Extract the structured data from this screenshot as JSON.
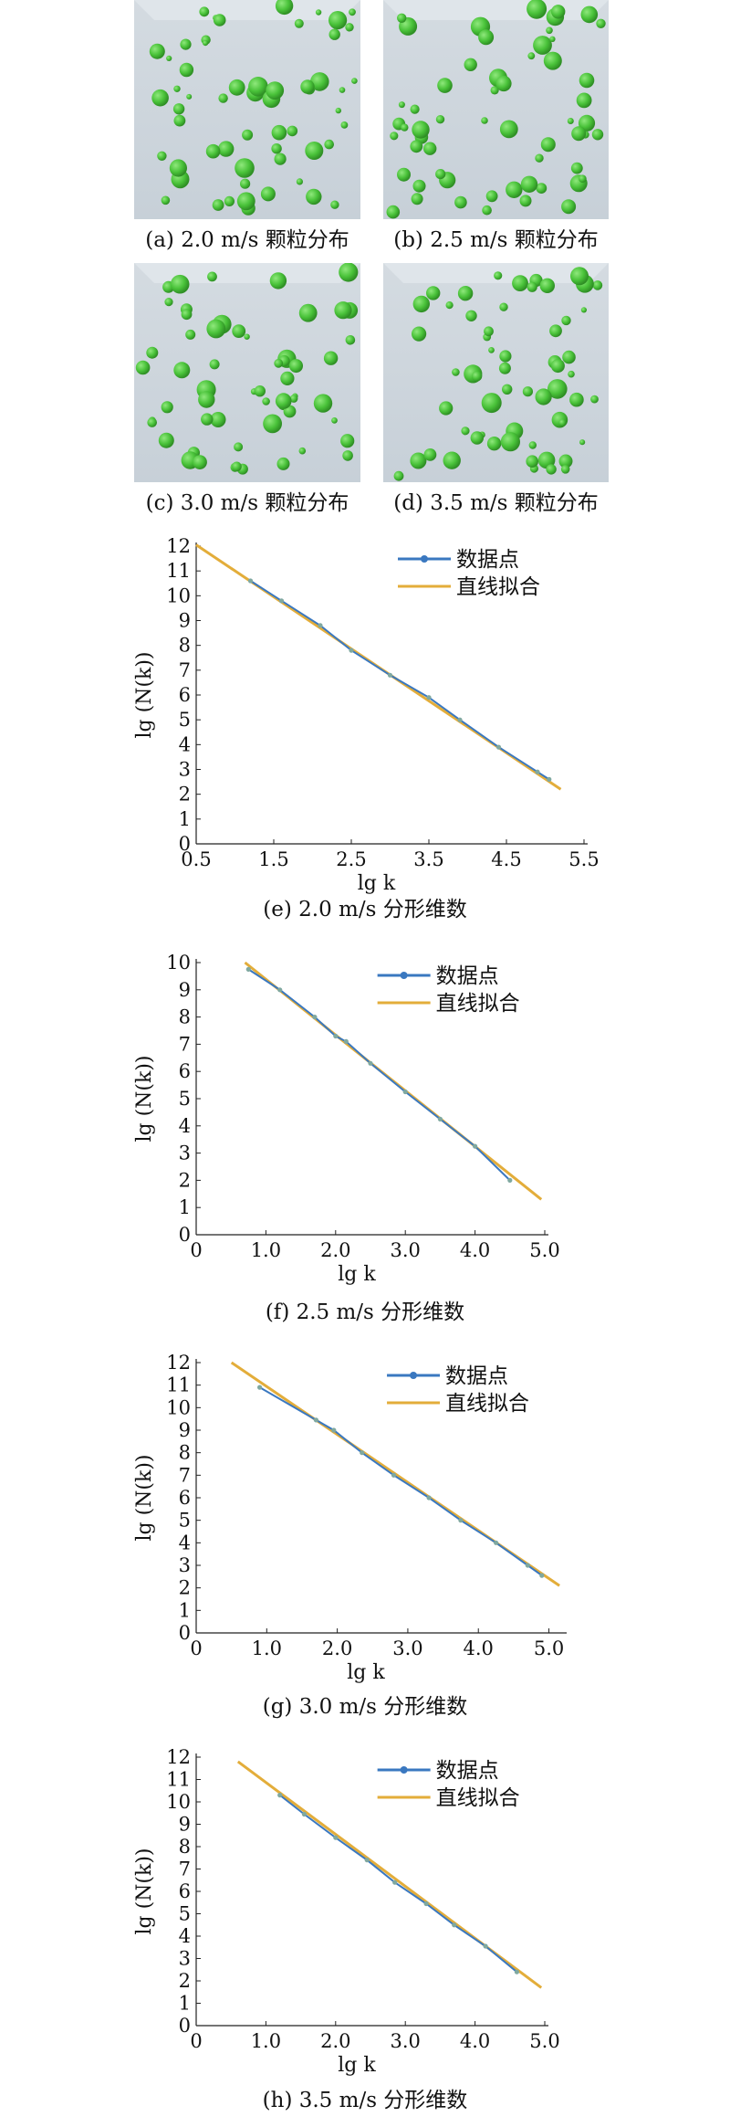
{
  "panels": [
    {
      "caption": "(a) 2.0 m/s 颗粒分布"
    },
    {
      "caption": "(b) 2.5 m/s 颗粒分布"
    },
    {
      "caption": "(c) 3.0 m/s 颗粒分布"
    },
    {
      "caption": "(d) 3.5 m/s 颗粒分布"
    }
  ],
  "colors": {
    "data": "#3a78c0",
    "fit": "#e3ad3a",
    "particle": "#49c239",
    "bg": "#ffffff"
  },
  "chart_data": [
    {
      "type": "line",
      "caption": "(e) 2.0 m/s 分形维数",
      "xlabel": "lg k",
      "ylabel": "lg (N(k))",
      "xlim": [
        0.5,
        5.5
      ],
      "ylim": [
        0,
        12
      ],
      "xticks": [
        "0.5",
        "1.5",
        "2.5",
        "3.5",
        "4.5",
        "5.5"
      ],
      "yticks": [
        "0",
        "1",
        "2",
        "3",
        "4",
        "5",
        "6",
        "7",
        "8",
        "9",
        "10",
        "11",
        "12"
      ],
      "legend": "top-right",
      "series": [
        {
          "name": "数据点",
          "x": [
            1.2,
            1.6,
            2.1,
            2.5,
            3.0,
            3.5,
            3.9,
            4.4,
            4.9,
            5.05
          ],
          "y": [
            10.6,
            9.8,
            8.8,
            7.8,
            6.8,
            5.9,
            5.0,
            3.9,
            2.9,
            2.6
          ]
        },
        {
          "name": "直线拟合",
          "x": [
            0.5,
            5.2
          ],
          "y": [
            12.05,
            2.2
          ]
        }
      ]
    },
    {
      "type": "line",
      "caption": "(f) 2.5 m/s 分形维数",
      "xlabel": "lg k",
      "ylabel": "lg (N(k))",
      "xlim": [
        0,
        5
      ],
      "ylim": [
        0,
        10
      ],
      "xticks": [
        "0",
        "1.0",
        "2.0",
        "3.0",
        "4.0",
        "5.0"
      ],
      "yticks": [
        "0",
        "1",
        "2",
        "3",
        "4",
        "5",
        "6",
        "7",
        "8",
        "9",
        "10"
      ],
      "legend": "top-right",
      "series": [
        {
          "name": "数据点",
          "x": [
            0.75,
            1.2,
            1.7,
            2.0,
            2.15,
            2.5,
            3.0,
            3.5,
            4.0,
            4.5
          ],
          "y": [
            9.75,
            9.0,
            8.0,
            7.3,
            7.1,
            6.3,
            5.25,
            4.25,
            3.25,
            2.0
          ]
        },
        {
          "name": "直线拟合",
          "x": [
            0.7,
            4.95
          ],
          "y": [
            10.0,
            1.3
          ]
        }
      ]
    },
    {
      "type": "line",
      "caption": "(g) 3.0 m/s 分形维数",
      "xlabel": "lg k",
      "ylabel": "lg (N(k))",
      "xlim": [
        0,
        5.2
      ],
      "ylim": [
        0,
        12
      ],
      "xticks": [
        "0",
        "1.0",
        "2.0",
        "3.0",
        "4.0",
        "5.0"
      ],
      "yticks": [
        "0",
        "1",
        "2",
        "3",
        "4",
        "5",
        "6",
        "7",
        "8",
        "9",
        "10",
        "11",
        "12"
      ],
      "legend": "top-right",
      "series": [
        {
          "name": "数据点",
          "x": [
            0.9,
            1.7,
            1.95,
            2.35,
            2.8,
            3.3,
            3.75,
            4.25,
            4.7,
            4.9
          ],
          "y": [
            10.9,
            9.45,
            9.0,
            8.0,
            7.0,
            6.0,
            5.0,
            4.0,
            3.0,
            2.55
          ]
        },
        {
          "name": "直线拟合",
          "x": [
            0.5,
            5.15
          ],
          "y": [
            12.0,
            2.1
          ]
        }
      ]
    },
    {
      "type": "line",
      "caption": "(h) 3.5 m/s 分形维数",
      "xlabel": "lg k",
      "ylabel": "lg (N(k))",
      "xlim": [
        0,
        5
      ],
      "ylim": [
        0,
        12
      ],
      "xticks": [
        "0",
        "1.0",
        "2.0",
        "3.0",
        "4.0",
        "5.0"
      ],
      "yticks": [
        "0",
        "1",
        "2",
        "3",
        "4",
        "5",
        "6",
        "7",
        "8",
        "9",
        "10",
        "11",
        "12"
      ],
      "legend": "top-right",
      "series": [
        {
          "name": "数据点",
          "x": [
            1.2,
            1.55,
            2.0,
            2.45,
            2.85,
            3.3,
            3.7,
            4.15,
            4.6
          ],
          "y": [
            10.3,
            9.45,
            8.4,
            7.4,
            6.4,
            5.45,
            4.5,
            3.55,
            2.4
          ]
        },
        {
          "name": "直线拟合",
          "x": [
            0.6,
            4.95
          ],
          "y": [
            11.8,
            1.7
          ]
        }
      ]
    }
  ]
}
